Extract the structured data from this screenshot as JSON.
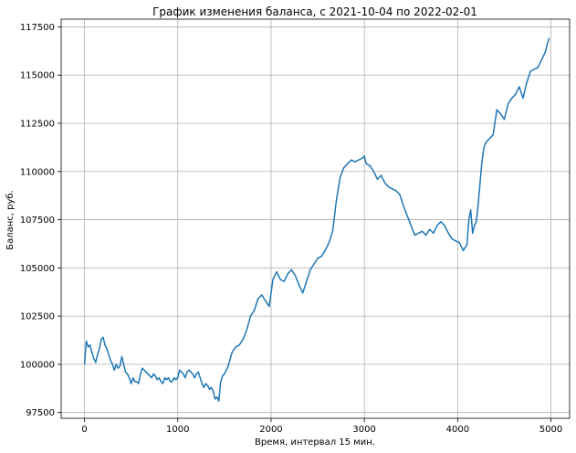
{
  "chart_data": {
    "type": "line",
    "title": "График изменения баланса, с 2021-10-04 по 2022-02-01",
    "xlabel": "Время, интервал 15 мин.",
    "ylabel": "Баланс, руб.",
    "xlim": [
      -250,
      5200
    ],
    "ylim": [
      97200,
      117900
    ],
    "x_ticks": [
      0,
      1000,
      2000,
      3000,
      4000,
      5000
    ],
    "x_tick_labels": [
      "0",
      "1000",
      "2000",
      "3000",
      "4000",
      "5000"
    ],
    "y_ticks": [
      97500,
      100000,
      102500,
      105000,
      107500,
      110000,
      112500,
      115000,
      117500
    ],
    "y_tick_labels": [
      "97500",
      "100000",
      "102500",
      "105000",
      "107500",
      "110000",
      "112500",
      "115000",
      "117500"
    ],
    "grid": true,
    "series": [
      {
        "color": "#1f77b4",
        "x": [
          0,
          20,
          40,
          60,
          80,
          100,
          120,
          140,
          160,
          180,
          200,
          220,
          240,
          260,
          280,
          300,
          320,
          340,
          360,
          380,
          400,
          420,
          440,
          460,
          480,
          500,
          520,
          540,
          560,
          580,
          600,
          620,
          640,
          660,
          680,
          700,
          720,
          740,
          760,
          780,
          800,
          820,
          840,
          860,
          880,
          900,
          920,
          940,
          960,
          980,
          1000,
          1020,
          1040,
          1060,
          1080,
          1100,
          1120,
          1140,
          1160,
          1180,
          1200,
          1220,
          1240,
          1260,
          1280,
          1300,
          1320,
          1340,
          1360,
          1380,
          1400,
          1420,
          1440,
          1460,
          1480,
          1500,
          1540,
          1580,
          1620,
          1660,
          1700,
          1740,
          1780,
          1820,
          1860,
          1900,
          1940,
          1980,
          2020,
          2060,
          2100,
          2140,
          2180,
          2220,
          2260,
          2300,
          2340,
          2380,
          2420,
          2460,
          2500,
          2540,
          2580,
          2620,
          2660,
          2700,
          2740,
          2780,
          2820,
          2860,
          2900,
          2940,
          2980,
          3000,
          3020,
          3060,
          3100,
          3140,
          3180,
          3220,
          3260,
          3300,
          3340,
          3380,
          3420,
          3460,
          3500,
          3540,
          3580,
          3620,
          3660,
          3700,
          3740,
          3780,
          3820,
          3860,
          3900,
          3940,
          3980,
          4020,
          4060,
          4100,
          4120,
          4140,
          4160,
          4180,
          4200,
          4220,
          4240,
          4260,
          4280,
          4300,
          4340,
          4380,
          4420,
          4460,
          4500,
          4540,
          4580,
          4620,
          4660,
          4700,
          4740,
          4780,
          4820,
          4860,
          4900,
          4940,
          4960,
          4980
        ],
        "y": [
          100000,
          101200,
          100900,
          101000,
          100600,
          100300,
          100100,
          100500,
          100800,
          101300,
          101400,
          101000,
          100800,
          100500,
          100200,
          100000,
          99700,
          100000,
          99800,
          99900,
          100400,
          100000,
          99600,
          99500,
          99300,
          99000,
          99300,
          99100,
          99100,
          99000,
          99500,
          99800,
          99700,
          99600,
          99500,
          99400,
          99300,
          99500,
          99400,
          99200,
          99300,
          99100,
          99000,
          99300,
          99200,
          99300,
          99100,
          99100,
          99300,
          99200,
          99300,
          99700,
          99600,
          99500,
          99300,
          99600,
          99700,
          99600,
          99500,
          99300,
          99500,
          99600,
          99300,
          99000,
          98800,
          99000,
          98900,
          98700,
          98800,
          98600,
          98200,
          98300,
          98100,
          99100,
          99400,
          99500,
          99900,
          100600,
          100900,
          101000,
          101300,
          101800,
          102500,
          102800,
          103400,
          103600,
          103300,
          103000,
          104400,
          104800,
          104400,
          104300,
          104700,
          104900,
          104600,
          104100,
          103700,
          104300,
          104900,
          105200,
          105500,
          105600,
          105900,
          106300,
          106900,
          108500,
          109700,
          110200,
          110400,
          110600,
          110500,
          110600,
          110700,
          110800,
          110400,
          110300,
          110000,
          109600,
          109800,
          109400,
          109200,
          109100,
          109000,
          108800,
          108200,
          107700,
          107200,
          106700,
          106800,
          106900,
          106700,
          107000,
          106800,
          107200,
          107400,
          107200,
          106800,
          106500,
          106400,
          106300,
          105900,
          106200,
          107500,
          108000,
          106800,
          107200,
          107400,
          108300,
          109400,
          110500,
          111200,
          111500,
          111700,
          111900,
          113200,
          113000,
          112700,
          113500,
          113800,
          114000,
          114400,
          113800,
          114600,
          115200,
          115300,
          115400,
          115800,
          116200,
          116600,
          116900
        ]
      }
    ]
  }
}
